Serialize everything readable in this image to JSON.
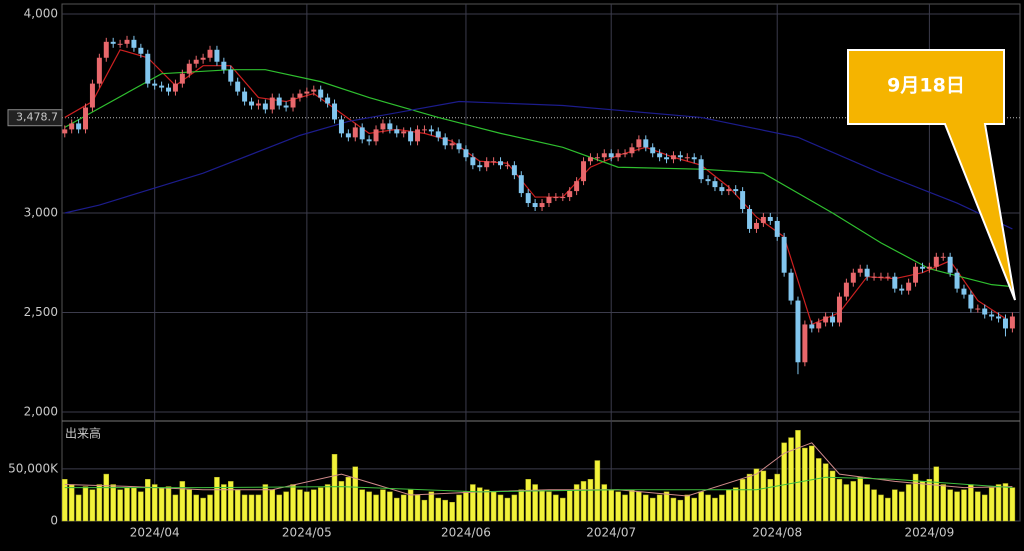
{
  "chart_data": {
    "type": "candlestick",
    "open": [
      3400,
      3420,
      3450,
      3420,
      3530,
      3650,
      3780,
      3860,
      3850,
      3850,
      3870,
      3830,
      3800,
      3650,
      3640,
      3630,
      3610,
      3650,
      3700,
      3750,
      3770,
      3780,
      3820,
      3760,
      3720,
      3660,
      3610,
      3560,
      3540,
      3550,
      3520,
      3580,
      3540,
      3530,
      3580,
      3600,
      3610,
      3620,
      3580,
      3550,
      3470,
      3400,
      3380,
      3430,
      3370,
      3360,
      3420,
      3450,
      3420,
      3400,
      3410,
      3360,
      3420,
      3420,
      3410,
      3380,
      3340,
      3350,
      3320,
      3280,
      3240,
      3230,
      3260,
      3260,
      3240,
      3240,
      3190,
      3100,
      3050,
      3030,
      3050,
      3080,
      3080,
      3080,
      3110,
      3160,
      3260,
      3280,
      3280,
      3300,
      3280,
      3300,
      3300,
      3330,
      3370,
      3330,
      3300,
      3280,
      3270,
      3290,
      3280,
      3280,
      3270,
      3170,
      3160,
      3130,
      3110,
      3120,
      3110,
      3020,
      2920,
      2950,
      2980,
      2960,
      2880,
      2700,
      2560,
      2250,
      2440,
      2420,
      2450,
      2480,
      2450,
      2580,
      2650,
      2700,
      2720,
      2680,
      2680,
      2680,
      2680,
      2620,
      2610,
      2650,
      2730,
      2720,
      2730,
      2780,
      2780,
      2700,
      2620,
      2590,
      2520,
      2520,
      2490,
      2480,
      2470,
      2420
    ],
    "high": [
      3440,
      3470,
      3470,
      3550,
      3670,
      3800,
      3880,
      3880,
      3870,
      3890,
      3890,
      3850,
      3820,
      3670,
      3660,
      3650,
      3670,
      3720,
      3770,
      3790,
      3800,
      3840,
      3840,
      3780,
      3740,
      3680,
      3630,
      3580,
      3570,
      3570,
      3600,
      3600,
      3560,
      3600,
      3620,
      3630,
      3640,
      3640,
      3600,
      3570,
      3490,
      3420,
      3450,
      3450,
      3390,
      3440,
      3470,
      3470,
      3440,
      3430,
      3430,
      3440,
      3440,
      3440,
      3430,
      3400,
      3370,
      3370,
      3340,
      3300,
      3260,
      3280,
      3280,
      3280,
      3260,
      3260,
      3210,
      3120,
      3070,
      3070,
      3100,
      3100,
      3100,
      3130,
      3180,
      3280,
      3300,
      3300,
      3320,
      3320,
      3320,
      3320,
      3350,
      3390,
      3390,
      3350,
      3320,
      3300,
      3310,
      3310,
      3300,
      3300,
      3290,
      3190,
      3180,
      3150,
      3140,
      3140,
      3130,
      3040,
      2970,
      3000,
      3000,
      2980,
      2900,
      2720,
      2580,
      2460,
      2460,
      2470,
      2500,
      2500,
      2600,
      2670,
      2720,
      2740,
      2740,
      2700,
      2700,
      2700,
      2700,
      2640,
      2670,
      2750,
      2750,
      2750,
      2800,
      2800,
      2800,
      2720,
      2640,
      2610,
      2540,
      2540,
      2510,
      2500,
      2490,
      2500
    ],
    "low": [
      3380,
      3400,
      3400,
      3400,
      3510,
      3630,
      3760,
      3830,
      3830,
      3830,
      3810,
      3780,
      3630,
      3620,
      3610,
      3590,
      3590,
      3630,
      3680,
      3730,
      3750,
      3760,
      3740,
      3700,
      3640,
      3590,
      3540,
      3520,
      3520,
      3500,
      3500,
      3520,
      3510,
      3510,
      3560,
      3580,
      3590,
      3560,
      3530,
      3450,
      3380,
      3360,
      3360,
      3350,
      3340,
      3340,
      3400,
      3400,
      3380,
      3380,
      3340,
      3340,
      3400,
      3390,
      3360,
      3320,
      3320,
      3300,
      3260,
      3220,
      3210,
      3210,
      3240,
      3220,
      3220,
      3170,
      3080,
      3030,
      3010,
      3010,
      3030,
      3060,
      3060,
      3060,
      3090,
      3140,
      3240,
      3260,
      3260,
      3260,
      3260,
      3280,
      3280,
      3310,
      3310,
      3280,
      3260,
      3250,
      3250,
      3260,
      3260,
      3250,
      3150,
      3140,
      3110,
      3090,
      3090,
      3090,
      3000,
      2900,
      2900,
      2930,
      2940,
      2860,
      2680,
      2540,
      2190,
      2230,
      2400,
      2400,
      2430,
      2430,
      2430,
      2560,
      2630,
      2680,
      2660,
      2660,
      2660,
      2660,
      2600,
      2590,
      2590,
      2630,
      2700,
      2700,
      2710,
      2760,
      2680,
      2600,
      2570,
      2500,
      2500,
      2470,
      2460,
      2450,
      2380,
      2400
    ],
    "close": [
      3420,
      3450,
      3420,
      3530,
      3650,
      3780,
      3860,
      3850,
      3850,
      3870,
      3830,
      3800,
      3650,
      3640,
      3630,
      3610,
      3650,
      3700,
      3750,
      3770,
      3780,
      3820,
      3760,
      3720,
      3660,
      3610,
      3560,
      3540,
      3550,
      3520,
      3580,
      3540,
      3530,
      3580,
      3600,
      3610,
      3620,
      3580,
      3550,
      3470,
      3400,
      3380,
      3430,
      3370,
      3360,
      3420,
      3450,
      3420,
      3400,
      3410,
      3360,
      3420,
      3420,
      3410,
      3380,
      3340,
      3350,
      3320,
      3280,
      3240,
      3230,
      3260,
      3260,
      3240,
      3240,
      3190,
      3100,
      3050,
      3030,
      3050,
      3080,
      3080,
      3080,
      3110,
      3160,
      3260,
      3280,
      3280,
      3300,
      3280,
      3300,
      3300,
      3330,
      3370,
      3330,
      3300,
      3280,
      3270,
      3290,
      3280,
      3280,
      3270,
      3170,
      3160,
      3130,
      3110,
      3120,
      3110,
      3020,
      2920,
      2950,
      2980,
      2960,
      2880,
      2700,
      2560,
      2250,
      2440,
      2420,
      2450,
      2480,
      2450,
      2580,
      2650,
      2700,
      2720,
      2680,
      2680,
      2680,
      2680,
      2620,
      2610,
      2650,
      2730,
      2720,
      2730,
      2780,
      2780,
      2700,
      2620,
      2590,
      2520,
      2520,
      2490,
      2480,
      2470,
      2420,
      2480
    ],
    "volume": [
      40000,
      35000,
      25000,
      33000,
      30000,
      35000,
      45000,
      35000,
      30000,
      32000,
      32000,
      28000,
      40000,
      35000,
      32000,
      33000,
      25000,
      38000,
      30000,
      25000,
      22000,
      25000,
      42000,
      35000,
      38000,
      30000,
      25000,
      25000,
      25000,
      35000,
      30000,
      25000,
      28000,
      35000,
      30000,
      28000,
      30000,
      32000,
      35000,
      64000,
      38000,
      42000,
      52000,
      30000,
      28000,
      25000,
      30000,
      28000,
      22000,
      25000,
      30000,
      25000,
      20000,
      28000,
      22000,
      20000,
      18000,
      25000,
      28000,
      35000,
      32000,
      30000,
      28000,
      25000,
      22000,
      25000,
      30000,
      40000,
      35000,
      30000,
      28000,
      25000,
      22000,
      30000,
      35000,
      38000,
      40000,
      58000,
      35000,
      30000,
      28000,
      25000,
      30000,
      28000,
      25000,
      22000,
      25000,
      28000,
      22000,
      20000,
      25000,
      22000,
      28000,
      25000,
      22000,
      25000,
      30000,
      32000,
      40000,
      45000,
      50000,
      48000,
      40000,
      45000,
      75000,
      80000,
      87000,
      70000,
      72000,
      60000,
      55000,
      48000,
      40000,
      35000,
      38000,
      42000,
      35000,
      30000,
      25000,
      22000,
      30000,
      28000,
      35000,
      45000,
      38000,
      40000,
      52000,
      35000,
      30000,
      28000,
      30000,
      35000,
      28000,
      25000,
      32000,
      35000,
      36000,
      32000
    ],
    "up_color": "#e8686c",
    "down_color": "#82c6ee",
    "volume_color": "#f2f23a",
    "xlim": [
      -0.4,
      138.1
    ],
    "xticks": [
      {
        "value": 13,
        "label": "2024/04"
      },
      {
        "value": 35,
        "label": "2024/05"
      },
      {
        "value": 58,
        "label": "2024/06"
      },
      {
        "value": 79,
        "label": "2024/07"
      },
      {
        "value": 103,
        "label": "2024/08"
      },
      {
        "value": 125,
        "label": "2024/09"
      }
    ],
    "ylim": [
      1960,
      4050
    ],
    "yticks": [
      {
        "value": 2000,
        "label": "2,000"
      },
      {
        "value": 2500,
        "label": "2,500"
      },
      {
        "value": 3000,
        "label": "3,000"
      },
      {
        "value": 4000,
        "label": "4,000"
      }
    ],
    "current_price": {
      "value": 3478.7,
      "label": "3,478.7"
    },
    "ma_lines": [
      {
        "color": "#cc2020",
        "x": [
          0,
          4,
          8,
          12,
          16,
          20,
          24,
          28,
          32,
          36,
          40,
          44,
          48,
          52,
          56,
          60,
          64,
          68,
          72,
          76,
          80,
          84,
          88,
          92,
          96,
          100,
          104,
          108,
          112,
          116,
          120,
          124,
          128,
          132,
          136
        ],
        "values": [
          3480,
          3560,
          3820,
          3780,
          3640,
          3740,
          3740,
          3580,
          3560,
          3600,
          3500,
          3400,
          3420,
          3400,
          3360,
          3260,
          3250,
          3080,
          3080,
          3230,
          3290,
          3330,
          3280,
          3240,
          3130,
          2980,
          2880,
          2440,
          2500,
          2680,
          2670,
          2700,
          2760,
          2560,
          2470
        ]
      },
      {
        "color": "#2fbf2f",
        "x": [
          0,
          14,
          24,
          29,
          37,
          44,
          54,
          63,
          72,
          80,
          92,
          101,
          111,
          118,
          125,
          134,
          137
        ],
        "values": [
          3430,
          3700,
          3720,
          3720,
          3660,
          3580,
          3480,
          3400,
          3330,
          3230,
          3220,
          3200,
          3000,
          2850,
          2720,
          2640,
          2630
        ]
      },
      {
        "color": "#1c1c8c",
        "x": [
          0,
          5,
          20,
          34,
          41,
          57,
          72,
          92,
          106,
          118,
          129,
          137
        ],
        "values": [
          3000,
          3040,
          3200,
          3390,
          3460,
          3560,
          3540,
          3480,
          3380,
          3200,
          3050,
          2920
        ]
      }
    ],
    "volume_label": "出来高",
    "vlim": [
      0,
      95000
    ],
    "vticks": [
      0,
      {
        "value": 50000,
        "label": "50,000K"
      }
    ],
    "volume_ma_lines": [
      {
        "color": "#d08a8a",
        "x": [
          0,
          10,
          20,
          30,
          40,
          50,
          60,
          70,
          80,
          90,
          100,
          104,
          108,
          112,
          120,
          130,
          137
        ],
        "values": [
          35000,
          33000,
          30000,
          30000,
          45000,
          25000,
          28000,
          30000,
          30000,
          24000,
          45000,
          65000,
          75000,
          45000,
          38000,
          32000,
          33000
        ]
      },
      {
        "color": "#3fbf3f",
        "x": [
          0,
          20,
          40,
          60,
          80,
          100,
          110,
          120,
          137
        ],
        "values": [
          32000,
          32000,
          33000,
          28000,
          30000,
          30000,
          42000,
          40000,
          32000
        ]
      }
    ],
    "callout": "9月18日"
  }
}
